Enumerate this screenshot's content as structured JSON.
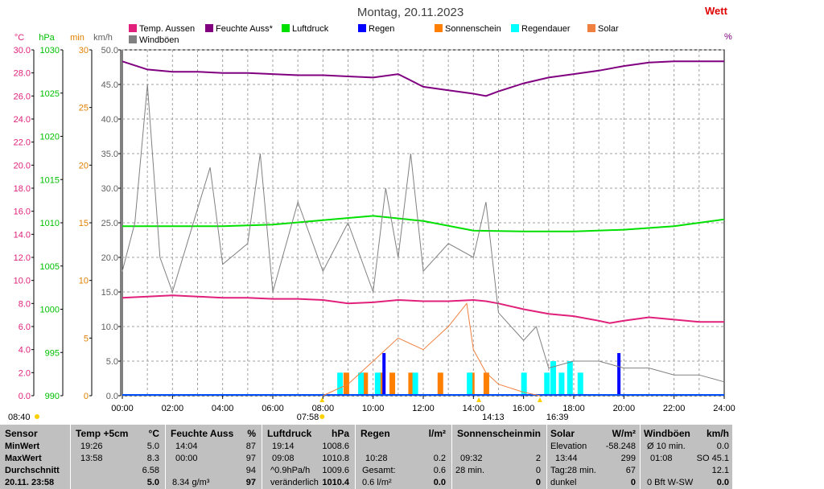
{
  "title": "Montag, 20.11.2023",
  "brand": "Wett",
  "right_unit": "%",
  "axes": {
    "temp": {
      "unit": "°C",
      "color": "#e0207a",
      "ticks": [
        "30.0",
        "28.0",
        "26.0",
        "24.0",
        "22.0",
        "20.0",
        "18.0",
        "16.0",
        "14.0",
        "12.0",
        "10.0",
        "8.0",
        "6.0",
        "4.0",
        "2.0",
        "0.0"
      ]
    },
    "pressure": {
      "unit": "hPa",
      "color": "#00c000",
      "ticks": [
        "1030",
        "1025",
        "1020",
        "1015",
        "1010",
        "1005",
        "1000",
        "995",
        "990"
      ]
    },
    "minutes": {
      "unit": "min",
      "color": "#e08000",
      "ticks": [
        "30",
        "25",
        "20",
        "15",
        "10",
        "5",
        "0"
      ]
    },
    "wind": {
      "unit": "km/h",
      "color": "#606060",
      "ticks": [
        "50.0",
        "45.0",
        "40.0",
        "35.0",
        "30.0",
        "25.0",
        "20.0",
        "15.0",
        "10.0",
        "5.0",
        "0.0"
      ]
    },
    "x_ticks": [
      "00:00",
      "02:00",
      "04:00",
      "06:00",
      "08:00",
      "10:00",
      "12:00",
      "14:00",
      "16:00",
      "18:00",
      "20:00",
      "22:00",
      "24:00"
    ]
  },
  "markers": {
    "sunrise": "07:58",
    "solar_noon": "14:13",
    "sunset": "16:39",
    "left_time": "08:40"
  },
  "legend": [
    {
      "label": "Temp. Aussen",
      "color": "#e0207a"
    },
    {
      "label": "Feuchte Auss*",
      "color": "#800080"
    },
    {
      "label": "Luftdruck",
      "color": "#00e000"
    },
    {
      "label": "Regen",
      "color": "#0000ff"
    },
    {
      "label": "Sonnenschein",
      "color": "#ff8000"
    },
    {
      "label": "Regendauer",
      "color": "#00ffff"
    },
    {
      "label": "Solar",
      "color": "#f08040"
    },
    {
      "label": "Windböen",
      "color": "#808080"
    }
  ],
  "chart_data": {
    "type": "line",
    "title": "Montag, 20.11.2023",
    "x_range": [
      "00:00",
      "24:00"
    ],
    "ylim_temp": [
      0,
      30
    ],
    "ylim_pressure": [
      990,
      1030
    ],
    "ylim_minutes": [
      0,
      30
    ],
    "ylim_wind": [
      0,
      50
    ],
    "grid": true,
    "series": [
      {
        "name": "Temp. Aussen",
        "axis": "temp",
        "color": "#e0207a",
        "x": [
          "00:00",
          "01:00",
          "02:00",
          "03:00",
          "04:00",
          "05:00",
          "06:00",
          "07:00",
          "08:00",
          "09:00",
          "10:00",
          "11:00",
          "12:00",
          "13:00",
          "14:00",
          "14:30",
          "15:00",
          "16:00",
          "17:00",
          "18:00",
          "19:00",
          "19:26",
          "20:00",
          "21:00",
          "22:00",
          "23:00",
          "24:00"
        ],
        "y": [
          8.5,
          8.6,
          8.7,
          8.6,
          8.5,
          8.5,
          8.4,
          8.4,
          8.3,
          8.0,
          8.1,
          8.3,
          8.2,
          8.2,
          8.3,
          8.2,
          8.0,
          7.5,
          7.1,
          6.9,
          6.5,
          6.3,
          6.5,
          6.8,
          6.6,
          6.4,
          6.4
        ]
      },
      {
        "name": "Feuchte Auss*",
        "axis": "minutes",
        "color": "#800080",
        "x": [
          "00:00",
          "01:00",
          "02:00",
          "03:00",
          "04:00",
          "05:00",
          "06:00",
          "07:00",
          "08:00",
          "09:00",
          "10:00",
          "11:00",
          "12:00",
          "13:00",
          "14:00",
          "14:30",
          "15:00",
          "16:00",
          "17:00",
          "18:00",
          "19:00",
          "20:00",
          "21:00",
          "22:00",
          "23:00",
          "24:00"
        ],
        "y": [
          29.0,
          28.3,
          28.1,
          28.1,
          28.0,
          28.0,
          27.9,
          27.8,
          27.8,
          27.7,
          27.6,
          27.9,
          26.8,
          26.5,
          26.2,
          26.0,
          26.4,
          27.1,
          27.6,
          27.9,
          28.2,
          28.6,
          28.9,
          29.0,
          29.0,
          29.0
        ]
      },
      {
        "name": "Luftdruck",
        "axis": "pressure",
        "color": "#00e000",
        "x": [
          "00:00",
          "02:00",
          "04:00",
          "06:00",
          "08:00",
          "10:00",
          "12:00",
          "14:00",
          "16:00",
          "18:00",
          "20:00",
          "22:00",
          "23:00",
          "24:00"
        ],
        "y": [
          1009.6,
          1009.6,
          1009.6,
          1009.8,
          1010.3,
          1010.8,
          1010.2,
          1009.1,
          1009.0,
          1009.0,
          1009.2,
          1009.6,
          1010.0,
          1010.4
        ]
      },
      {
        "name": "Windböen",
        "axis": "wind",
        "color": "#808080",
        "x": [
          "00:00",
          "00:30",
          "01:00",
          "01:30",
          "02:00",
          "03:00",
          "03:30",
          "04:00",
          "05:00",
          "05:30",
          "06:00",
          "07:00",
          "08:00",
          "09:00",
          "10:00",
          "10:30",
          "11:00",
          "11:30",
          "12:00",
          "13:00",
          "14:00",
          "14:30",
          "15:00",
          "16:00",
          "16:30",
          "17:00",
          "18:00",
          "19:00",
          "20:00",
          "21:00",
          "22:00",
          "23:00",
          "24:00"
        ],
        "y": [
          18,
          25,
          45,
          20,
          15,
          27,
          33,
          19,
          22,
          35,
          15,
          28,
          18,
          25,
          15,
          30,
          20,
          35,
          18,
          22,
          20,
          28,
          12,
          8,
          10,
          4,
          5,
          5,
          4,
          4,
          3,
          3,
          2
        ]
      },
      {
        "name": "Solar",
        "axis": "minutes",
        "color": "#f08040",
        "x": [
          "08:00",
          "09:00",
          "10:00",
          "11:00",
          "12:00",
          "13:00",
          "13:44",
          "14:00",
          "14:30",
          "15:00",
          "16:00",
          "16:39"
        ],
        "y": [
          0,
          1,
          3,
          5,
          4,
          6,
          8,
          4,
          2,
          1,
          0.3,
          0
        ]
      }
    ],
    "bars": [
      {
        "name": "Sonnenschein",
        "axis": "minutes",
        "color": "#ff8000",
        "x": [
          "08:55",
          "09:40",
          "10:20",
          "10:45",
          "11:30",
          "12:40",
          "13:55",
          "14:30"
        ],
        "y": [
          2,
          2,
          2,
          2,
          2,
          2,
          2,
          2
        ]
      },
      {
        "name": "Regendauer",
        "axis": "minutes",
        "color": "#00ffff",
        "x": [
          "08:40",
          "09:30",
          "10:10",
          "11:40",
          "13:50",
          "16:00",
          "16:55",
          "17:10",
          "17:30",
          "17:50",
          "18:15"
        ],
        "y": [
          2,
          2,
          2,
          2,
          2,
          2,
          2,
          3,
          2,
          3,
          2
        ]
      },
      {
        "name": "Regen",
        "axis": "minutes",
        "color": "#0000ff",
        "x": [
          "10:28",
          "19:50"
        ],
        "y": [
          3.7,
          3.7
        ]
      }
    ]
  },
  "table": {
    "sensor": {
      "header": "Sensor",
      "rows": [
        "MinWert",
        "MaxWert",
        "Durchschnitt",
        "20.11. 23:58"
      ]
    },
    "temp": {
      "header": "Temp +5cm",
      "unit": "°C",
      "rows": [
        [
          "19:26",
          "5.0"
        ],
        [
          "13:58",
          "8.3"
        ],
        [
          "",
          "6.58"
        ],
        [
          "",
          "5.0"
        ]
      ]
    },
    "humidity": {
      "header": "Feuchte Auss",
      "unit": "%",
      "rows": [
        [
          "14:04",
          "87"
        ],
        [
          "00:00",
          "97"
        ],
        [
          "",
          "94"
        ],
        [
          "8.34 g/m³",
          "97"
        ]
      ]
    },
    "pressure": {
      "header": "Luftdruck",
      "unit": "hPa",
      "rows": [
        [
          "19:14",
          "1008.6"
        ],
        [
          "09:08",
          "1010.8"
        ],
        [
          "^0.9hPa/h",
          "1009.6"
        ],
        [
          "veränderlich",
          "1010.4"
        ]
      ]
    },
    "rain": {
      "header": "Regen",
      "unit": "l/m²",
      "rows": [
        [
          "",
          ""
        ],
        [
          "10:28",
          "0.2"
        ],
        [
          "Gesamt:",
          "0.6"
        ],
        [
          "0.6 l/m²",
          "0.0"
        ]
      ]
    },
    "sunshine": {
      "header": "Sonnenschein",
      "unit": "min",
      "rows": [
        [
          "",
          ""
        ],
        [
          "09:32",
          "2"
        ],
        [
          "28 min.",
          "0"
        ],
        [
          "",
          "0"
        ]
      ]
    },
    "solar": {
      "header": "Solar",
      "unit": "W/m²",
      "rows": [
        [
          "Elevation",
          "-58.248"
        ],
        [
          "13:44",
          "299"
        ],
        [
          "Tag:28 min.",
          "67"
        ],
        [
          "dunkel",
          "0"
        ]
      ]
    },
    "wind": {
      "header": "Windböen",
      "unit": "km/h",
      "rows": [
        [
          "Ø 10 min.",
          "0.0"
        ],
        [
          "01:08",
          "SO 45.1"
        ],
        [
          "",
          "12.1"
        ],
        [
          "0 Bft W-SW",
          "0.0"
        ]
      ]
    }
  }
}
